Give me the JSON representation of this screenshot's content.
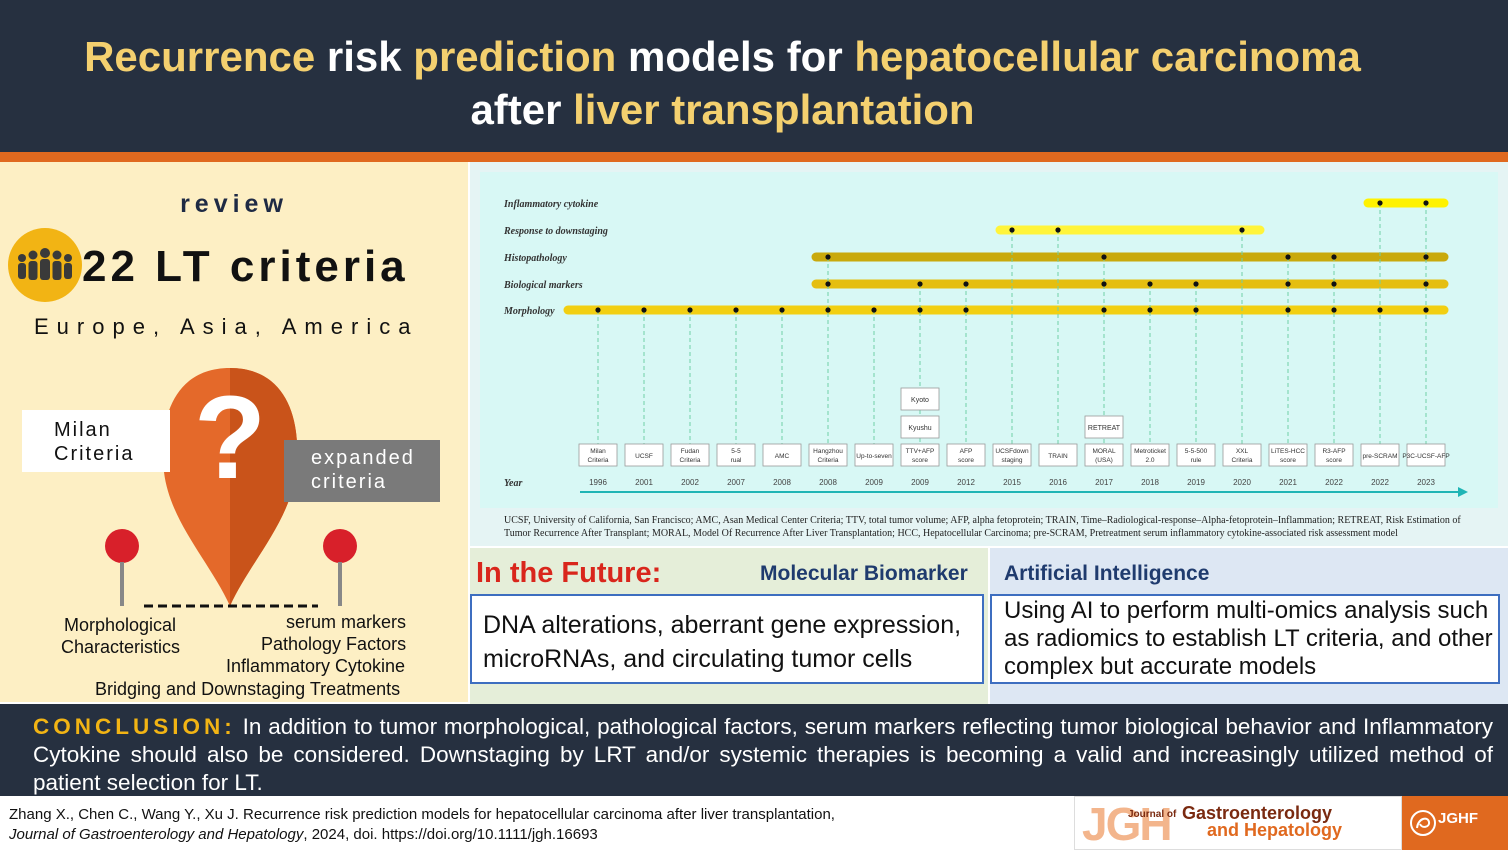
{
  "header": {
    "title_line1": [
      {
        "text": "Recurrence",
        "hl": true
      },
      {
        "text": " risk ",
        "hl": false
      },
      {
        "text": "prediction",
        "hl": true
      },
      {
        "text": " models for ",
        "hl": false
      },
      {
        "text": "hepatocellular carcinoma",
        "hl": true
      }
    ],
    "title_line2": [
      {
        "text": "after ",
        "hl": false
      },
      {
        "text": "liver transplantation",
        "hl": true
      }
    ]
  },
  "colors": {
    "header_bg": "#263040",
    "accent_orange": "#e0691f",
    "accent_yellow": "#f4d06f",
    "left_panel_bg": "#fdefc4",
    "future_red": "#d9261c",
    "navy": "#1f3b6e"
  },
  "left_panel": {
    "review": "review",
    "lt_count": "22 LT criteria",
    "regions": "Europe, Asia, America",
    "people_icon": "people-group-icon",
    "milan_line1": "Milan",
    "milan_line2": "Criteria",
    "expanded_line1": "expanded",
    "expanded_line2": "criteria",
    "location_pin_icon": "question-mark-pin-icon",
    "factors": {
      "morph_line1": "Morphological",
      "morph_line2": "Characteristics",
      "serum": "serum markers",
      "pathology": "Pathology Factors",
      "inflammatory": "Inflammatory Cytokine",
      "bridging": "Bridging and Downstaging Treatments"
    }
  },
  "chart_data": {
    "type": "timeline",
    "categories": [
      "Inflammatory cytokine",
      "Response to downstaging",
      "Histopathology",
      "Biological markers",
      "Morphology"
    ],
    "axis_label": "Year",
    "criteria": [
      {
        "name": "Milan Criteria",
        "year": "1996",
        "factors": [
          "Morphology"
        ]
      },
      {
        "name": "UCSF",
        "year": "2001",
        "factors": [
          "Morphology"
        ]
      },
      {
        "name": "Fudan Criteria",
        "year": "2002",
        "factors": [
          "Morphology"
        ]
      },
      {
        "name": "5-5 rual",
        "year": "2007",
        "factors": [
          "Morphology"
        ]
      },
      {
        "name": "AMC",
        "year": "2008",
        "factors": [
          "Morphology"
        ]
      },
      {
        "name": "Hangzhou Criteria",
        "year": "2008",
        "factors": [
          "Morphology",
          "Biological markers",
          "Histopathology"
        ]
      },
      {
        "name": "Up-to-seven",
        "year": "2009",
        "factors": [
          "Morphology"
        ]
      },
      {
        "name": "TTV+AFP score",
        "year": "2009",
        "factors": [
          "Morphology",
          "Biological markers"
        ],
        "also": [
          "Kyushu",
          "Kyoto"
        ]
      },
      {
        "name": "AFP score",
        "year": "2012",
        "factors": [
          "Morphology",
          "Biological markers"
        ]
      },
      {
        "name": "UCSFdown staging",
        "year": "2015",
        "factors": [
          "Response to downstaging"
        ]
      },
      {
        "name": "TRAIN",
        "year": "2016",
        "factors": [
          "Response to downstaging"
        ]
      },
      {
        "name": "MORAL (USA)",
        "year": "2017",
        "factors": [
          "Morphology",
          "Biological markers",
          "Histopathology"
        ],
        "also": [
          "RETREAT"
        ]
      },
      {
        "name": "Metroticket 2.0",
        "year": "2018",
        "factors": [
          "Morphology",
          "Biological markers"
        ]
      },
      {
        "name": "5-5-500 rule",
        "year": "2019",
        "factors": [
          "Morphology",
          "Biological markers"
        ]
      },
      {
        "name": "XXL Criteria",
        "year": "2020",
        "factors": [
          "Response to downstaging"
        ]
      },
      {
        "name": "LiTES-HCC score",
        "year": "2021",
        "factors": [
          "Morphology",
          "Biological markers",
          "Histopathology"
        ]
      },
      {
        "name": "R3-AFP score",
        "year": "2022",
        "factors": [
          "Morphology",
          "Biological markers",
          "Histopathology"
        ]
      },
      {
        "name": "pre-SCRAM",
        "year": "2022",
        "factors": [
          "Morphology",
          "Inflammatory cytokine"
        ]
      },
      {
        "name": "P3C-UCSF-AFP",
        "year": "2023",
        "factors": [
          "Morphology",
          "Biological markers",
          "Histopathology",
          "Inflammatory cytokine"
        ]
      }
    ],
    "footnote": "UCSF, University of California, San Francisco; AMC, Asan Medical Center Criteria; TTV, total tumor volume; AFP, alpha fetoprotein; TRAIN, Time–Radiological-response–Alpha-fetoprotein–Inflammation; RETREAT, Risk Estimation of Tumor Recurrence After Transplant; MORAL, Model Of Recurrence After Liver Transplantation; HCC, Hepatocellular Carcinoma; pre-SCRAM, Pretreatment serum inflammatory cytokine-associated risk assessment model"
  },
  "future": {
    "heading": "In the Future:",
    "molecular_heading": "Molecular Biomarker",
    "molecular_text": "DNA alterations, aberrant gene expression, microRNAs, and circulating tumor cells",
    "ai_heading": "Artificial Intelligence",
    "ai_text": "Using AI to perform multi-omics analysis such as radiomics to establish LT criteria, and other complex but accurate models"
  },
  "conclusion": {
    "label": "CONCLUSION:",
    "text": "In addition to tumor morphological, pathological factors, serum markers reflecting tumor biological behavior and Inflammatory Cytokine should also be considered. Downstaging by LRT and/or systemic therapies is becoming a valid and increasingly utilized method of patient selection for LT."
  },
  "footer": {
    "citation_line1": "Zhang X., Chen C., Wang Y., Xu J. Recurrence risk prediction models for hepatocellular carcinoma after liver transplantation,",
    "citation_journal": "Journal of Gastroenterology and Hepatology",
    "citation_rest": ", 2024, doi. https://doi.org/10.1111/jgh.16693",
    "jgh_logo": "JGH",
    "jgh_journal_of": "Journal of",
    "jgh_gastro": "Gastroenterology",
    "jgh_hepato": "and Hepatology",
    "jghf_logo": "JGHF"
  }
}
